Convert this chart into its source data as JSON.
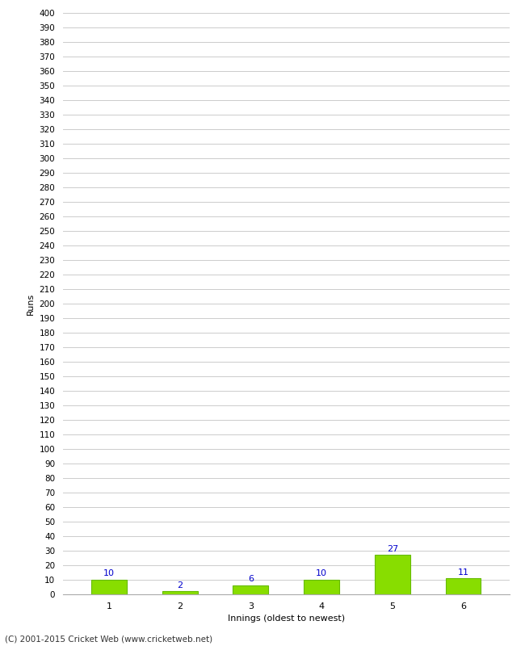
{
  "categories": [
    "1",
    "2",
    "3",
    "4",
    "5",
    "6"
  ],
  "values": [
    10,
    2,
    6,
    10,
    27,
    11
  ],
  "bar_color": "#88dd00",
  "bar_edge_color": "#66bb00",
  "label_color": "#0000cc",
  "ylabel": "Runs",
  "xlabel": "Innings (oldest to newest)",
  "ylim": [
    0,
    400
  ],
  "ytick_step": 10,
  "background_color": "#ffffff",
  "grid_color": "#cccccc",
  "footer": "(C) 2001-2015 Cricket Web (www.cricketweb.net)"
}
